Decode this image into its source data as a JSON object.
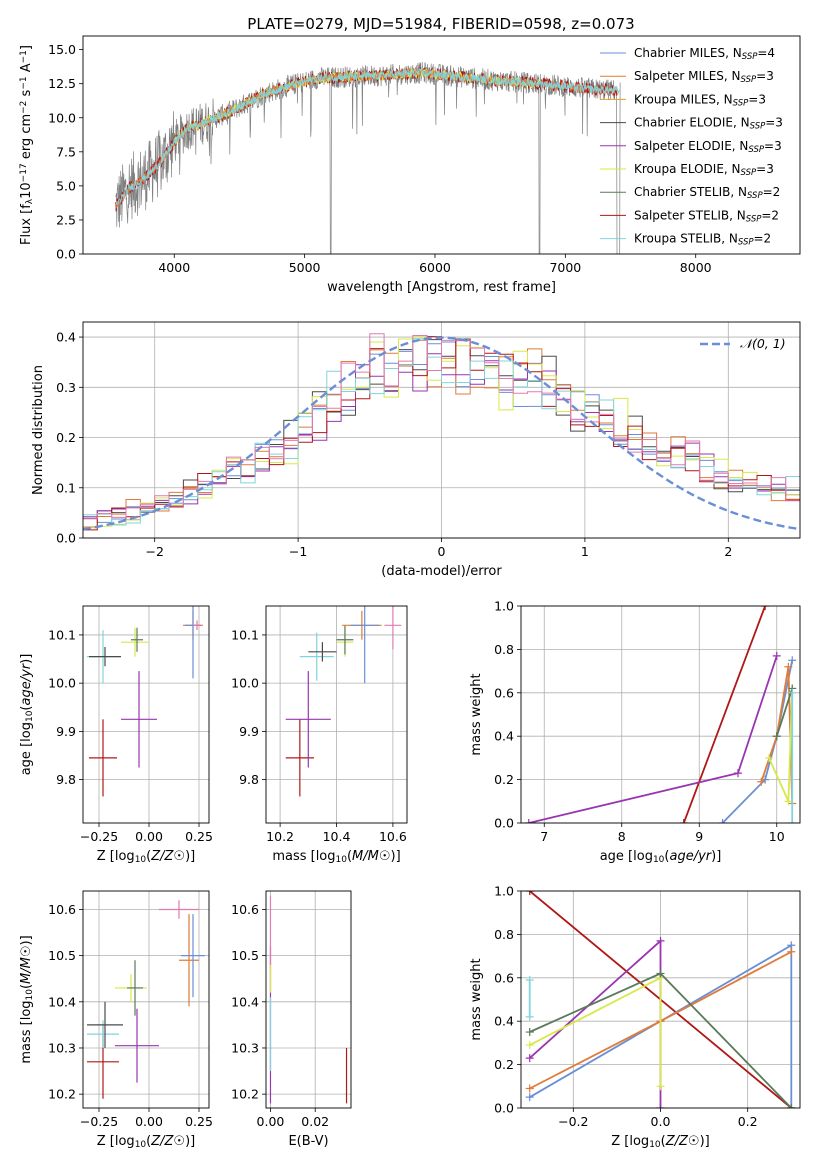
{
  "figure_title": "PLATE=0279, MJD=51984, FIBERID=0598, z=0.073",
  "colors": {
    "Chabrier MILES": "#6a8fd6",
    "Salpeter MILES": "#e07b39",
    "Kroupa MILES": "#e0a020",
    "Chabrier ELODIE": "#4a4a4a",
    "Salpeter ELODIE": "#9a35b0",
    "Kroupa ELODIE": "#d8e84a",
    "Chabrier STELIB": "#5a7a5a",
    "Salpeter STELIB": "#b01818",
    "Kroupa STELIB": "#80d4dc",
    "pink": "#e07ab0",
    "data": "#808080"
  },
  "chart_data": [
    {
      "id": "spectrum",
      "type": "line",
      "title": "PLATE=0279, MJD=51984, FIBERID=0598, z=0.073",
      "xlabel": "wavelength [Angstrom, rest frame]",
      "ylabel": "Flux [fλ10⁻¹⁷ erg cm⁻² s⁻¹ A⁻¹]",
      "xlim": [
        3300,
        8800
      ],
      "ylim": [
        0,
        16
      ],
      "xticks": [
        4000,
        5000,
        6000,
        7000,
        8000
      ],
      "yticks": [
        0.0,
        2.5,
        5.0,
        7.5,
        10.0,
        12.5,
        15.0
      ],
      "legend_position": "right",
      "legend": [
        "Chabrier MILES, N_SSP=4",
        "Salpeter MILES, N_SSP=3",
        "Kroupa MILES, N_SSP=3",
        "Chabrier ELODIE, N_SSP=3",
        "Salpeter ELODIE, N_SSP=3",
        "Kroupa ELODIE, N_SSP=3",
        "Chabrier STELIB, N_SSP=2",
        "Salpeter STELIB, N_SSP=2",
        "Kroupa STELIB, N_SSP=2"
      ],
      "continuum": {
        "x": [
          3550,
          3650,
          3800,
          3900,
          4000,
          4100,
          4300,
          4500,
          4700,
          4900,
          5100,
          5300,
          5600,
          5900,
          6200,
          6500,
          6800,
          7000,
          7200,
          7400
        ],
        "y": [
          3.5,
          4.8,
          5.8,
          6.8,
          8.2,
          9.2,
          9.9,
          10.8,
          11.8,
          12.4,
          12.9,
          13.0,
          13.1,
          13.3,
          13.0,
          12.7,
          12.5,
          12.3,
          12.1,
          12.0
        ]
      }
    },
    {
      "id": "residuals",
      "type": "line",
      "xlabel": "(data-model)/error",
      "ylabel": "Normed distribution",
      "xlim": [
        -2.5,
        2.5
      ],
      "ylim": [
        0,
        0.43
      ],
      "xticks": [
        -2,
        -1,
        0,
        1,
        2
      ],
      "yticks": [
        0.0,
        0.1,
        0.2,
        0.3,
        0.4
      ],
      "legend": [
        "𝒩(0, 1)"
      ],
      "legend_position": "top-right",
      "normal_curve": {
        "mean": 0,
        "sigma": 1
      },
      "histogram_envelope": {
        "x": [
          -2.5,
          -2.0,
          -1.5,
          -1.0,
          -0.6,
          -0.3,
          0.0,
          0.4,
          0.8,
          1.2,
          1.6,
          2.0,
          2.5
        ],
        "y": [
          0.03,
          0.06,
          0.12,
          0.2,
          0.33,
          0.36,
          0.35,
          0.33,
          0.3,
          0.23,
          0.17,
          0.12,
          0.09
        ]
      }
    },
    {
      "id": "age_vs_Z",
      "type": "scatter",
      "xlabel": "Z [log10(Z/Z☉)]",
      "ylabel": "age  [log10(age/yr)]",
      "xlim": [
        -0.33,
        0.3
      ],
      "ylim": [
        9.71,
        10.16
      ],
      "xticks": [
        -0.25,
        0.0,
        0.25
      ],
      "yticks": [
        9.8,
        9.9,
        10.0,
        10.1
      ],
      "points": [
        {
          "series": "Salpeter STELIB",
          "x": -0.23,
          "y": 9.845,
          "xerr": 0.07,
          "yerr": 0.08
        },
        {
          "series": "Salpeter ELODIE",
          "x": -0.05,
          "y": 9.925,
          "xerr": 0.09,
          "yerr": 0.1
        },
        {
          "series": "Kroupa STELIB",
          "x": -0.23,
          "y": 10.055,
          "xerr": 0.08,
          "yerr": 0.055
        },
        {
          "series": "Chabrier ELODIE",
          "x": -0.22,
          "y": 10.055,
          "xerr": 0.08,
          "yerr": 0.02
        },
        {
          "series": "Kroupa ELODIE",
          "x": -0.07,
          "y": 10.085,
          "xerr": 0.07,
          "yerr": 0.03
        },
        {
          "series": "Chabrier STELIB",
          "x": -0.06,
          "y": 10.09,
          "xerr": 0.03,
          "yerr": 0.025
        },
        {
          "series": "Salpeter MILES",
          "x": 0.22,
          "y": 10.12,
          "xerr": 0.05,
          "yerr": 0.03
        },
        {
          "series": "Chabrier MILES",
          "x": 0.22,
          "y": 10.12,
          "xerr": 0.04,
          "yerr": 0.11
        },
        {
          "series": "pink",
          "x": 0.24,
          "y": 10.12,
          "xerr": 0.02,
          "yerr": 0.01
        }
      ]
    },
    {
      "id": "age_vs_mass",
      "type": "scatter",
      "xlabel": "mass [log10(M/M☉)]",
      "ylim": [
        9.71,
        10.16
      ],
      "xlim": [
        10.15,
        10.65
      ],
      "xticks": [
        10.2,
        10.4,
        10.6
      ],
      "yticks": [
        9.8,
        9.9,
        10.0,
        10.1
      ],
      "points": [
        {
          "series": "Salpeter STELIB",
          "x": 10.27,
          "y": 9.845,
          "xerr": 0.05,
          "yerr": 0.08
        },
        {
          "series": "Salpeter ELODIE",
          "x": 10.3,
          "y": 9.925,
          "xerr": 0.08,
          "yerr": 0.1
        },
        {
          "series": "Kroupa STELIB",
          "x": 10.33,
          "y": 10.055,
          "xerr": 0.06,
          "yerr": 0.05
        },
        {
          "series": "Chabrier ELODIE",
          "x": 10.35,
          "y": 10.065,
          "xerr": 0.05,
          "yerr": 0.02
        },
        {
          "series": "Kroupa ELODIE",
          "x": 10.43,
          "y": 10.085,
          "xerr": 0.03,
          "yerr": 0.03
        },
        {
          "series": "Chabrier STELIB",
          "x": 10.43,
          "y": 10.09,
          "xerr": 0.03,
          "yerr": 0.03
        },
        {
          "series": "Salpeter MILES",
          "x": 10.49,
          "y": 10.12,
          "xerr": 0.07,
          "yerr": 0.03
        },
        {
          "series": "Chabrier MILES",
          "x": 10.5,
          "y": 10.12,
          "xerr": 0.05,
          "yerr": 0.12
        },
        {
          "series": "pink",
          "x": 10.6,
          "y": 10.12,
          "xerr": 0.03,
          "yerr": 0.05
        }
      ]
    },
    {
      "id": "weight_vs_age",
      "type": "line",
      "xlabel": "age  [log10(age/yr)]",
      "ylabel": "mass weight",
      "xlim": [
        6.7,
        10.3
      ],
      "ylim": [
        0,
        1
      ],
      "xticks": [
        7,
        8,
        9,
        10
      ],
      "yticks": [
        0.0,
        0.2,
        0.4,
        0.6,
        0.8,
        1.0
      ],
      "series": [
        {
          "name": "Salpeter STELIB",
          "x": [
            8.8,
            9.85
          ],
          "y": [
            0.0,
            1.0
          ]
        },
        {
          "name": "Salpeter ELODIE",
          "x": [
            6.8,
            9.5,
            10.0
          ],
          "y": [
            0.0,
            0.23,
            0.77
          ]
        },
        {
          "name": "Chabrier MILES",
          "x": [
            9.3,
            9.85,
            10.0,
            10.2
          ],
          "y": [
            0.0,
            0.2,
            0.4,
            0.75
          ]
        },
        {
          "name": "Salpeter MILES",
          "x": [
            9.8,
            10.0,
            10.15,
            10.2
          ],
          "y": [
            0.19,
            0.4,
            0.72,
            0.09
          ]
        },
        {
          "name": "Kroupa ELODIE",
          "x": [
            9.9,
            10.15,
            10.2
          ],
          "y": [
            0.3,
            0.1,
            0.62
          ]
        },
        {
          "name": "Chabrier STELIB",
          "x": [
            10.0,
            10.2
          ],
          "y": [
            0.4,
            0.62
          ]
        },
        {
          "name": "Kroupa STELIB",
          "x": [
            10.2,
            10.2
          ],
          "y": [
            0.0,
            0.6
          ]
        }
      ]
    },
    {
      "id": "mass_vs_Z",
      "type": "scatter",
      "xlabel": "Z [log10(Z/Z☉)]",
      "ylabel": "mass [log10(M/M☉)]",
      "xlim": [
        -0.33,
        0.3
      ],
      "ylim": [
        10.17,
        10.64
      ],
      "xticks": [
        -0.25,
        0.0,
        0.25
      ],
      "yticks": [
        10.2,
        10.3,
        10.4,
        10.5,
        10.6
      ],
      "points": [
        {
          "series": "Salpeter STELIB",
          "x": -0.23,
          "y": 10.27,
          "xerr": 0.08,
          "yerr": 0.08
        },
        {
          "series": "Salpeter ELODIE",
          "x": -0.06,
          "y": 10.305,
          "xerr": 0.11,
          "yerr": 0.08
        },
        {
          "series": "Kroupa STELIB",
          "x": -0.23,
          "y": 10.33,
          "xerr": 0.08,
          "yerr": 0.03
        },
        {
          "series": "Chabrier ELODIE",
          "x": -0.22,
          "y": 10.35,
          "xerr": 0.09,
          "yerr": 0.05
        },
        {
          "series": "Kroupa ELODIE",
          "x": -0.09,
          "y": 10.43,
          "xerr": 0.08,
          "yerr": 0.03
        },
        {
          "series": "Chabrier STELIB",
          "x": -0.07,
          "y": 10.43,
          "xerr": 0.04,
          "yerr": 0.06
        },
        {
          "series": "Salpeter MILES",
          "x": 0.2,
          "y": 10.49,
          "xerr": 0.05,
          "yerr": 0.1
        },
        {
          "series": "Chabrier MILES",
          "x": 0.22,
          "y": 10.5,
          "xerr": 0.06,
          "yerr": 0.09
        },
        {
          "series": "pink",
          "x": 0.15,
          "y": 10.6,
          "xerr": 0.1,
          "yerr": 0.02
        }
      ]
    },
    {
      "id": "mass_vs_ebv",
      "type": "scatter",
      "xlabel": "E(B-V)",
      "xlim": [
        -0.002,
        0.036
      ],
      "ylim": [
        10.17,
        10.64
      ],
      "xticks": [
        0.0,
        0.02
      ],
      "yticks": [
        10.2,
        10.3,
        10.4,
        10.5,
        10.6
      ],
      "points": [
        {
          "series": "Salpeter ELODIE",
          "x": 0.0,
          "y": 10.35,
          "xerr": 0.0,
          "yerr": 0.17
        },
        {
          "series": "Kroupa STELIB",
          "x": 0.0,
          "y": 10.33,
          "xerr": 0.0,
          "yerr": 0.08
        },
        {
          "series": "pink",
          "x": 0.0,
          "y": 10.55,
          "xerr": 0.0,
          "yerr": 0.08
        },
        {
          "series": "Kroupa ELODIE",
          "x": 0.0,
          "y": 10.45,
          "xerr": 0.0,
          "yerr": 0.03
        },
        {
          "series": "Salpeter STELIB",
          "x": 0.034,
          "y": 10.24,
          "xerr": 0.0,
          "yerr": 0.06
        }
      ]
    },
    {
      "id": "weight_vs_Z",
      "type": "line",
      "xlabel": "Z [log10(Z/Z☉)]",
      "ylabel": "mass weight",
      "xlim": [
        -0.32,
        0.32
      ],
      "ylim": [
        0,
        1
      ],
      "xticks": [
        -0.2,
        0.0,
        0.2
      ],
      "yticks": [
        0.0,
        0.2,
        0.4,
        0.6,
        0.8,
        1.0
      ],
      "series": [
        {
          "name": "Salpeter STELIB",
          "x": [
            -0.3,
            0.3
          ],
          "y": [
            1.0,
            0.0
          ]
        },
        {
          "name": "Chabrier MILES",
          "x": [
            -0.3,
            0.0,
            0.3,
            0.3
          ],
          "y": [
            0.05,
            0.4,
            0.75,
            0.0
          ]
        },
        {
          "name": "Salpeter MILES",
          "x": [
            -0.3,
            0.0,
            0.3
          ],
          "y": [
            0.09,
            0.4,
            0.72
          ]
        },
        {
          "name": "Salpeter ELODIE",
          "x": [
            -0.3,
            0.0,
            0.0
          ],
          "y": [
            0.23,
            0.77,
            0.0
          ]
        },
        {
          "name": "Kroupa ELODIE",
          "x": [
            -0.3,
            0.0,
            0.0
          ],
          "y": [
            0.29,
            0.6,
            0.1
          ]
        },
        {
          "name": "Chabrier STELIB",
          "x": [
            -0.3,
            0.0,
            0.3
          ],
          "y": [
            0.35,
            0.62,
            0.0
          ]
        },
        {
          "name": "Kroupa STELIB",
          "x": [
            -0.3,
            -0.3
          ],
          "y": [
            0.42,
            0.59
          ]
        }
      ]
    }
  ]
}
